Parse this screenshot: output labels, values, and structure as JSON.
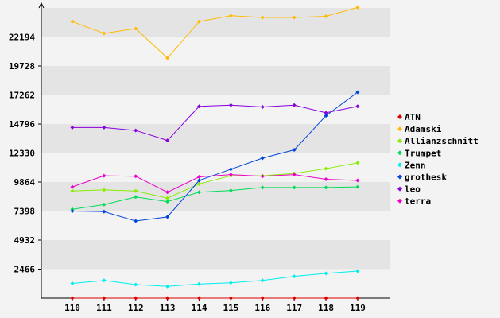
{
  "chart_data": {
    "type": "line",
    "title": "",
    "xlabel": "",
    "ylabel": "",
    "categories": [
      "110",
      "111",
      "112",
      "113",
      "114",
      "115",
      "116",
      "117",
      "118",
      "119"
    ],
    "y_ticks": [
      "2466",
      "4932",
      "7398",
      "9864",
      "12330",
      "14796",
      "17262",
      "19728",
      "22194"
    ],
    "ylim": [
      0,
      24660
    ],
    "grid": "horizontal bands",
    "legend_position": "right",
    "series": [
      {
        "name": "ATN",
        "color": "#dd0000",
        "values": [
          0,
          0,
          0,
          0,
          0,
          0,
          0,
          0,
          0,
          0
        ]
      },
      {
        "name": "Adamski",
        "color": "#ffbb00",
        "values": [
          23500,
          22500,
          22900,
          20400,
          23500,
          24000,
          23850,
          23850,
          23950,
          24700
        ]
      },
      {
        "name": "Allianzschnitt",
        "color": "#88ee00",
        "values": [
          9100,
          9200,
          9100,
          8500,
          9700,
          10400,
          10400,
          10600,
          11000,
          11500
        ]
      },
      {
        "name": "Trumpet",
        "color": "#00dd55",
        "values": [
          7550,
          7950,
          8600,
          8200,
          9000,
          9150,
          9400,
          9400,
          9400,
          9450
        ]
      },
      {
        "name": "Zenn",
        "color": "#00eeee",
        "values": [
          1250,
          1500,
          1150,
          1000,
          1200,
          1300,
          1500,
          1850,
          2100,
          2300
        ]
      },
      {
        "name": "grothesk",
        "color": "#0044dd",
        "values": [
          7400,
          7350,
          6550,
          6900,
          10000,
          10950,
          11900,
          12600,
          15500,
          17500
        ]
      },
      {
        "name": "leo",
        "color": "#8800dd",
        "values": [
          14500,
          14500,
          14250,
          13400,
          16300,
          16400,
          16250,
          16400,
          15750,
          16300
        ]
      },
      {
        "name": "terra",
        "color": "#ee00cc",
        "values": [
          9450,
          10400,
          10350,
          9000,
          10300,
          10500,
          10350,
          10500,
          10100,
          10000
        ]
      }
    ]
  }
}
